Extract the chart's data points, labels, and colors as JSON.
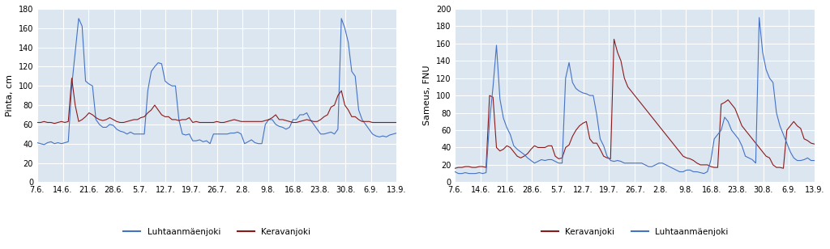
{
  "left_title": "",
  "right_title": "",
  "left_ylabel": "Pinta, cm",
  "right_ylabel": "Sameus, FNU",
  "left_ylim": [
    0,
    180
  ],
  "right_ylim": [
    0,
    200
  ],
  "left_yticks": [
    0,
    20,
    40,
    60,
    80,
    100,
    120,
    140,
    160,
    180
  ],
  "right_yticks": [
    0,
    20,
    40,
    60,
    80,
    100,
    120,
    140,
    160,
    180,
    200
  ],
  "xtick_labels": [
    "7.6.",
    "14.6.",
    "21.6.",
    "28.6.",
    "5.7.",
    "12.7.",
    "19.7.",
    "26.7.",
    "2.8.",
    "9.8.",
    "16.8.",
    "23.8.",
    "30.8.",
    "6.9.",
    "13.9."
  ],
  "blue_color": "#4472C4",
  "red_color": "#8B1A1A",
  "background_color": "#DCE6F1",
  "grid_color": "#FFFFFF",
  "left_legend": [
    [
      "Luhtaanmäenjoki",
      "#4472C4"
    ],
    [
      "Keravanjoki",
      "#8B1A1A"
    ]
  ],
  "right_legend": [
    [
      "Keravanjoki",
      "#8B1A1A"
    ],
    [
      "Luhtaanmäenjoki",
      "#4472C4"
    ]
  ],
  "left_luhtaan": [
    41,
    40,
    39,
    41,
    42,
    40,
    41,
    40,
    41,
    42,
    100,
    135,
    170,
    162,
    105,
    102,
    100,
    65,
    60,
    57,
    57,
    60,
    59,
    55,
    53,
    52,
    50,
    52,
    50,
    50,
    50,
    50,
    95,
    115,
    120,
    124,
    123,
    105,
    102,
    100,
    100,
    65,
    50,
    49,
    50,
    43,
    43,
    44,
    42,
    43,
    40,
    50,
    50,
    50,
    50,
    50,
    51,
    51,
    52,
    50,
    40,
    42,
    44,
    41,
    40,
    40,
    60,
    65,
    65,
    60,
    58,
    57,
    55,
    57,
    65,
    65,
    70,
    70,
    72,
    65,
    60,
    55,
    50,
    50,
    51,
    52,
    50,
    55,
    170,
    160,
    145,
    115,
    110,
    75,
    65,
    60,
    55,
    50,
    48,
    47,
    48,
    47,
    49,
    50,
    51
  ],
  "left_keravan": [
    62,
    62,
    63,
    62,
    62,
    61,
    62,
    63,
    62,
    63,
    108,
    80,
    63,
    65,
    68,
    72,
    70,
    67,
    65,
    64,
    65,
    67,
    65,
    63,
    62,
    62,
    63,
    64,
    65,
    65,
    67,
    68,
    72,
    75,
    80,
    75,
    70,
    68,
    68,
    65,
    65,
    64,
    65,
    65,
    67,
    62,
    63,
    62,
    62,
    62,
    62,
    62,
    63,
    62,
    62,
    63,
    64,
    65,
    64,
    63,
    63,
    63,
    63,
    63,
    63,
    63,
    64,
    65,
    67,
    70,
    65,
    65,
    64,
    63,
    62,
    62,
    63,
    64,
    65,
    64,
    63,
    63,
    65,
    68,
    70,
    78,
    80,
    90,
    95,
    80,
    75,
    68,
    68,
    65,
    63,
    63,
    63,
    62,
    62,
    62,
    62,
    62,
    62,
    62,
    62
  ],
  "right_keravan": [
    16,
    17,
    17,
    18,
    18,
    17,
    17,
    18,
    18,
    17,
    100,
    98,
    40,
    36,
    38,
    42,
    40,
    35,
    30,
    28,
    30,
    33,
    38,
    42,
    40,
    40,
    40,
    42,
    42,
    30,
    27,
    28,
    40,
    43,
    53,
    60,
    65,
    68,
    70,
    50,
    45,
    45,
    38,
    30,
    28,
    27,
    165,
    150,
    140,
    120,
    110,
    105,
    100,
    95,
    90,
    85,
    80,
    75,
    70,
    65,
    60,
    55,
    50,
    45,
    40,
    35,
    30,
    28,
    27,
    25,
    22,
    20,
    20,
    20,
    18,
    17,
    17,
    90,
    92,
    95,
    90,
    85,
    75,
    65,
    60,
    55,
    50,
    45,
    40,
    35,
    30,
    28,
    20,
    17,
    17,
    16,
    60,
    65,
    70,
    65,
    62,
    50,
    48,
    45,
    44
  ],
  "right_luhtaan": [
    12,
    10,
    10,
    11,
    10,
    10,
    10,
    11,
    10,
    11,
    70,
    110,
    158,
    96,
    74,
    63,
    55,
    42,
    38,
    35,
    32,
    28,
    25,
    22,
    24,
    26,
    25,
    26,
    26,
    24,
    22,
    22,
    120,
    138,
    115,
    108,
    105,
    103,
    102,
    100,
    100,
    78,
    50,
    42,
    30,
    25,
    24,
    25,
    24,
    22,
    22,
    22,
    22,
    22,
    22,
    20,
    18,
    18,
    20,
    22,
    22,
    20,
    18,
    16,
    14,
    12,
    12,
    14,
    14,
    12,
    12,
    11,
    10,
    12,
    25,
    50,
    55,
    60,
    75,
    70,
    60,
    55,
    50,
    42,
    30,
    28,
    26,
    22,
    190,
    150,
    130,
    120,
    115,
    80,
    65,
    55,
    45,
    35,
    28,
    25,
    25,
    26,
    28,
    25,
    25
  ]
}
